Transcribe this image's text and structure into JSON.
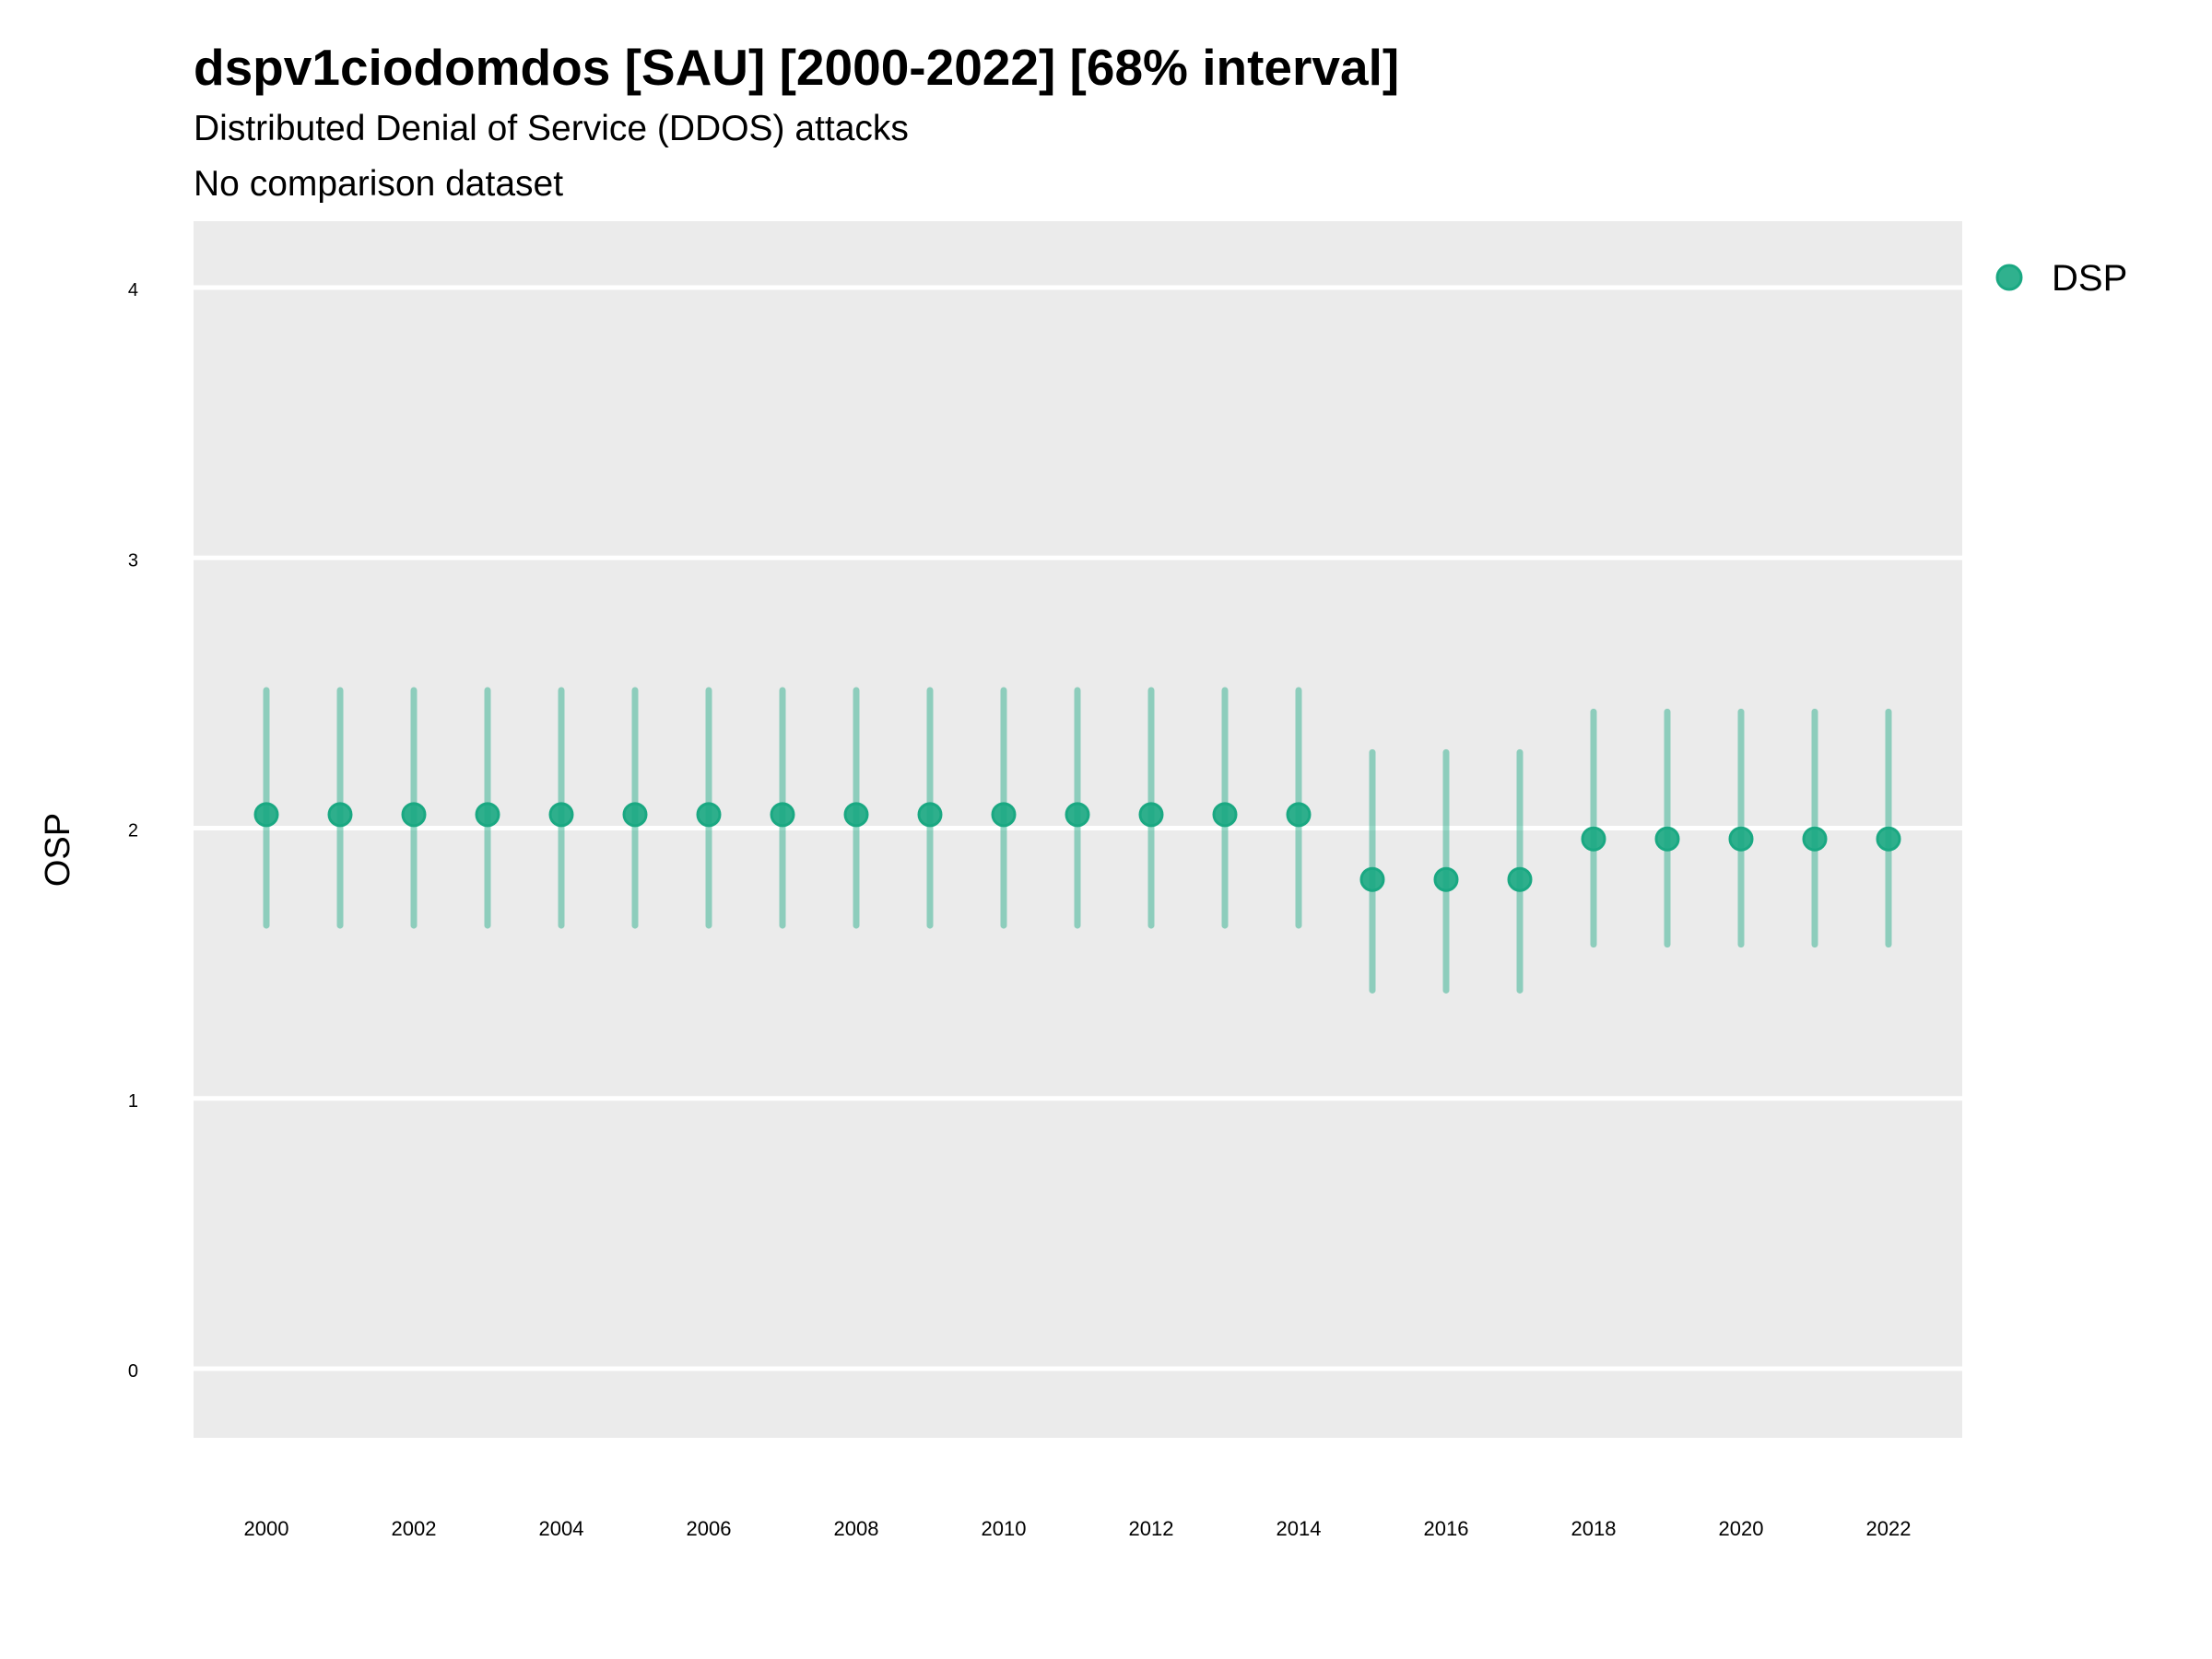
{
  "chart_data": {
    "type": "scatter",
    "title": "dspv1ciodomdos [SAU] [2000-2022] [68% interval]",
    "subtitle": "Distributed Denial of Service (DDOS) attacks",
    "caption_line": "No comparison dataset",
    "xlabel": "",
    "ylabel": "OSP",
    "ylim": [
      -0.25,
      4.25
    ],
    "xlim": [
      1999,
      2023
    ],
    "yticks": [
      "0",
      "1",
      "2",
      "3",
      "4"
    ],
    "xticks": [
      "2000",
      "2002",
      "2004",
      "2006",
      "2008",
      "2010",
      "2012",
      "2014",
      "2016",
      "2018",
      "2020",
      "2022"
    ],
    "grid": true,
    "legend_position": "top-right",
    "series": [
      {
        "name": "DSP",
        "color": "#1aa882",
        "x": [
          2000,
          2001,
          2002,
          2003,
          2004,
          2005,
          2006,
          2007,
          2008,
          2009,
          2010,
          2011,
          2012,
          2013,
          2014,
          2015,
          2016,
          2017,
          2018,
          2019,
          2020,
          2021,
          2022
        ],
        "y": [
          2.05,
          2.05,
          2.05,
          2.05,
          2.05,
          2.05,
          2.05,
          2.05,
          2.05,
          2.05,
          2.05,
          2.05,
          2.05,
          2.05,
          2.05,
          1.81,
          1.81,
          1.81,
          1.96,
          1.96,
          1.96,
          1.96,
          1.96
        ],
        "lower": [
          1.64,
          1.64,
          1.64,
          1.64,
          1.64,
          1.64,
          1.64,
          1.64,
          1.64,
          1.64,
          1.64,
          1.64,
          1.64,
          1.64,
          1.64,
          1.4,
          1.4,
          1.4,
          1.57,
          1.57,
          1.57,
          1.57,
          1.57
        ],
        "upper": [
          2.51,
          2.51,
          2.51,
          2.51,
          2.51,
          2.51,
          2.51,
          2.51,
          2.51,
          2.51,
          2.51,
          2.51,
          2.51,
          2.51,
          2.51,
          2.28,
          2.28,
          2.28,
          2.43,
          2.43,
          2.43,
          2.43,
          2.43
        ]
      }
    ]
  }
}
